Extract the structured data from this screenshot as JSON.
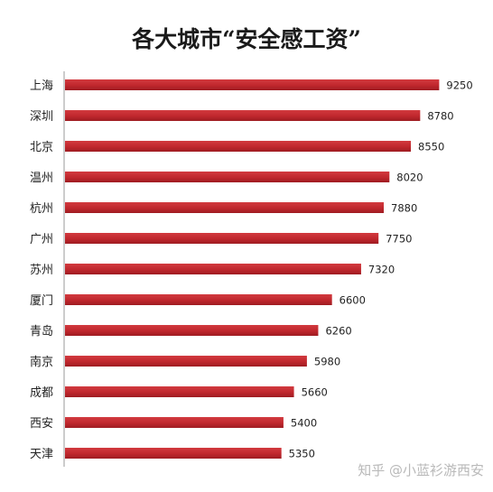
{
  "chart_data": {
    "type": "bar",
    "orientation": "horizontal",
    "title": "各大城市“安全感工资”",
    "categories": [
      "上海",
      "深圳",
      "北京",
      "温州",
      "杭州",
      "广州",
      "苏州",
      "厦门",
      "青岛",
      "南京",
      "成都",
      "西安",
      "天津"
    ],
    "values": [
      9250,
      8780,
      8550,
      8020,
      7880,
      7750,
      7320,
      6600,
      6260,
      5980,
      5660,
      5400,
      5350
    ],
    "xlim": [
      0,
      10000
    ],
    "grid": false,
    "data_labels": true,
    "bar_color": "#c0272d"
  },
  "watermark": "知乎 @小蓝衫游西安"
}
